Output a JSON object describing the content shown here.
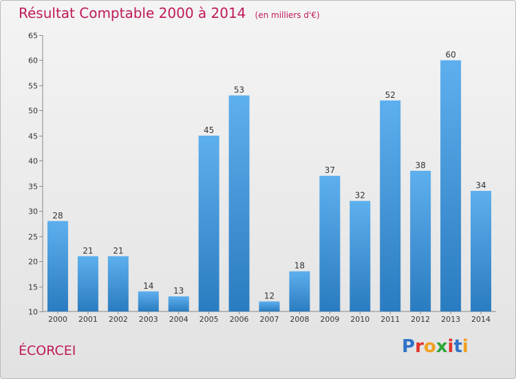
{
  "header": {
    "title": "Résultat Comptable 2000 à 2014",
    "unit": "(en milliers d'€)"
  },
  "town_name": "ÉCORCEI",
  "brand": {
    "letters": [
      "P",
      "r",
      "o",
      "x",
      "i",
      "t",
      "i"
    ],
    "colors": [
      "#2f73c8",
      "#e2342b",
      "#f0a020",
      "#2fa63a",
      "#e2342b",
      "#2f73c8",
      "#f0a020"
    ]
  },
  "chart_data": {
    "type": "bar",
    "title": "Résultat Comptable 2000 à 2014",
    "subtitle": "(en milliers d'€)",
    "xlabel": "",
    "ylabel": "",
    "categories": [
      "2000",
      "2001",
      "2002",
      "2003",
      "2004",
      "2005",
      "2006",
      "2007",
      "2008",
      "2009",
      "2010",
      "2011",
      "2012",
      "2013",
      "2014"
    ],
    "values": [
      28,
      21,
      21,
      14,
      13,
      45,
      53,
      12,
      18,
      37,
      32,
      52,
      38,
      60,
      34
    ],
    "ylim": [
      10,
      65
    ],
    "yticks": [
      10,
      15,
      20,
      25,
      30,
      35,
      40,
      45,
      50,
      55,
      60,
      65
    ],
    "grid": false,
    "bar_color": "#3d97de"
  }
}
